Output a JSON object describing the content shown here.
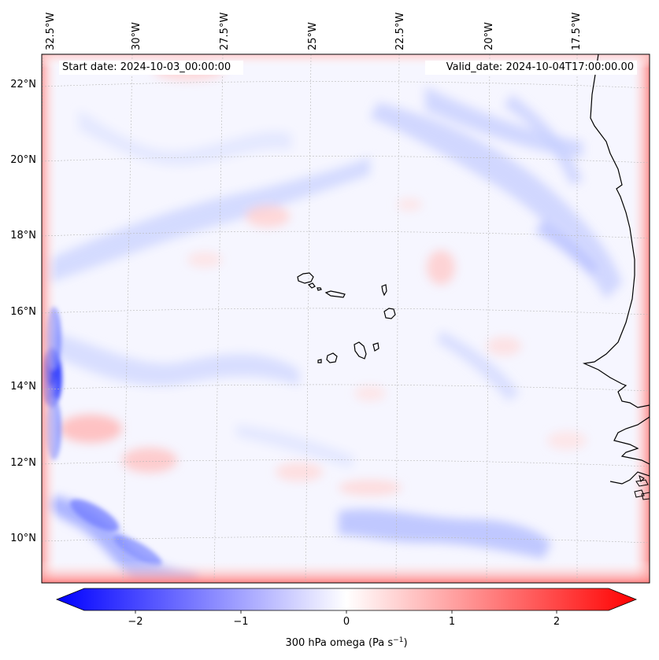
{
  "header": {
    "start_label": "Start date: 2024-10-03_00:00:00",
    "valid_label": "Valid_date: 2024-10-04T17:00:00.00"
  },
  "map": {
    "projection": "Lambert conformal",
    "region": "Cabo Verde / West African coast",
    "lon_labels": [
      "32.5°W",
      "30°W",
      "27.5°W",
      "25°W",
      "22.5°W",
      "20°W",
      "17.5°W"
    ],
    "lat_labels": [
      "22°N",
      "20°N",
      "18°N",
      "16°N",
      "14°N",
      "12°N",
      "10°N"
    ],
    "gridlines": true,
    "coastline_color": "#000000"
  },
  "colorbar": {
    "ticks": [
      "−2",
      "−1",
      "0",
      "1",
      "2"
    ],
    "label": "300 hPa omega (Pa s",
    "label_sup": "−1",
    "label_end": ")",
    "vmin": -2.5,
    "vmax": 2.5,
    "cmap": "bwr",
    "colors": {
      "negative": "#0000ff",
      "zero": "#ffffff",
      "positive": "#ff0000"
    }
  }
}
